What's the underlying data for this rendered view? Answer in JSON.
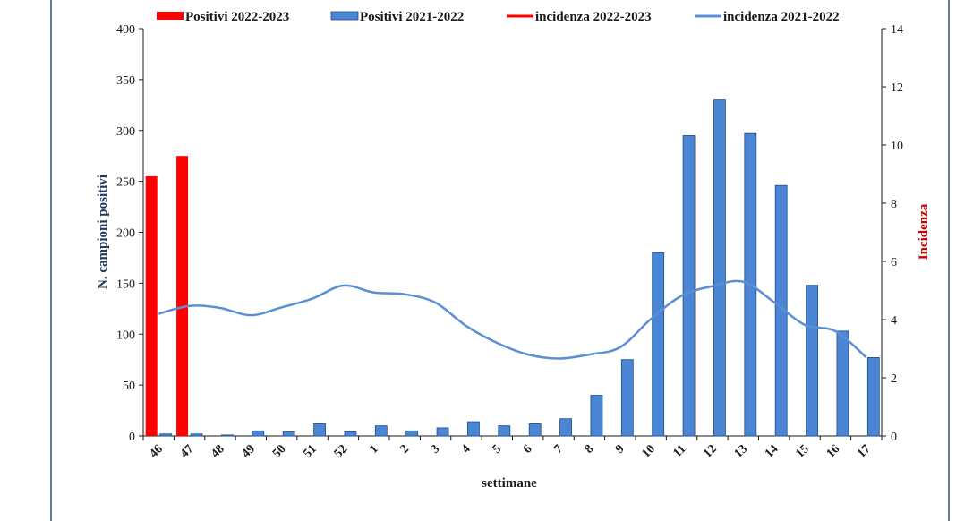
{
  "chart_data": {
    "type": "bar+line",
    "xlabel": "settimane",
    "ylabel": "N. campioni positivi",
    "y2label": "Incidenza",
    "ylim": [
      0,
      400
    ],
    "y2lim": [
      0,
      14
    ],
    "yticks": [
      "0",
      "50",
      "100",
      "150",
      "200",
      "250",
      "300",
      "350",
      "400"
    ],
    "y2ticks": [
      "0",
      "2",
      "4",
      "6",
      "8",
      "10",
      "12",
      "14"
    ],
    "categories": [
      "46",
      "47",
      "48",
      "49",
      "50",
      "51",
      "52",
      "1",
      "2",
      "3",
      "4",
      "5",
      "6",
      "7",
      "8",
      "9",
      "10",
      "11",
      "12",
      "13",
      "14",
      "15",
      "16",
      "17"
    ],
    "legend_position": "top",
    "bar_series": [
      {
        "name": "Positivi 2022-2023",
        "color": "#ff0000",
        "values": [
          255,
          275,
          null,
          null,
          null,
          null,
          null,
          null,
          null,
          null,
          null,
          null,
          null,
          null,
          null,
          null,
          null,
          null,
          null,
          null,
          null,
          null,
          null,
          null
        ]
      },
      {
        "name": "Positivi 2021-2022",
        "color": "#4a86d4",
        "values": [
          2,
          2,
          1,
          5,
          4,
          12,
          4,
          10,
          5,
          8,
          14,
          10,
          12,
          17,
          40,
          75,
          180,
          295,
          330,
          297,
          246,
          148,
          103,
          77
        ]
      }
    ],
    "line_series": [
      {
        "name": "incidenza 2022-2023",
        "color": "#ff0000",
        "values": []
      },
      {
        "name": "incidenza 2021-2022",
        "color": "#5b8fd4",
        "values": [
          4.2,
          4.47,
          4.4,
          4.15,
          4.42,
          4.72,
          5.17,
          4.93,
          4.87,
          4.58,
          3.78,
          3.2,
          2.8,
          2.66,
          2.8,
          3.05,
          4.02,
          4.82,
          5.15,
          5.3,
          4.6,
          3.82,
          3.6,
          2.7
        ]
      }
    ]
  }
}
